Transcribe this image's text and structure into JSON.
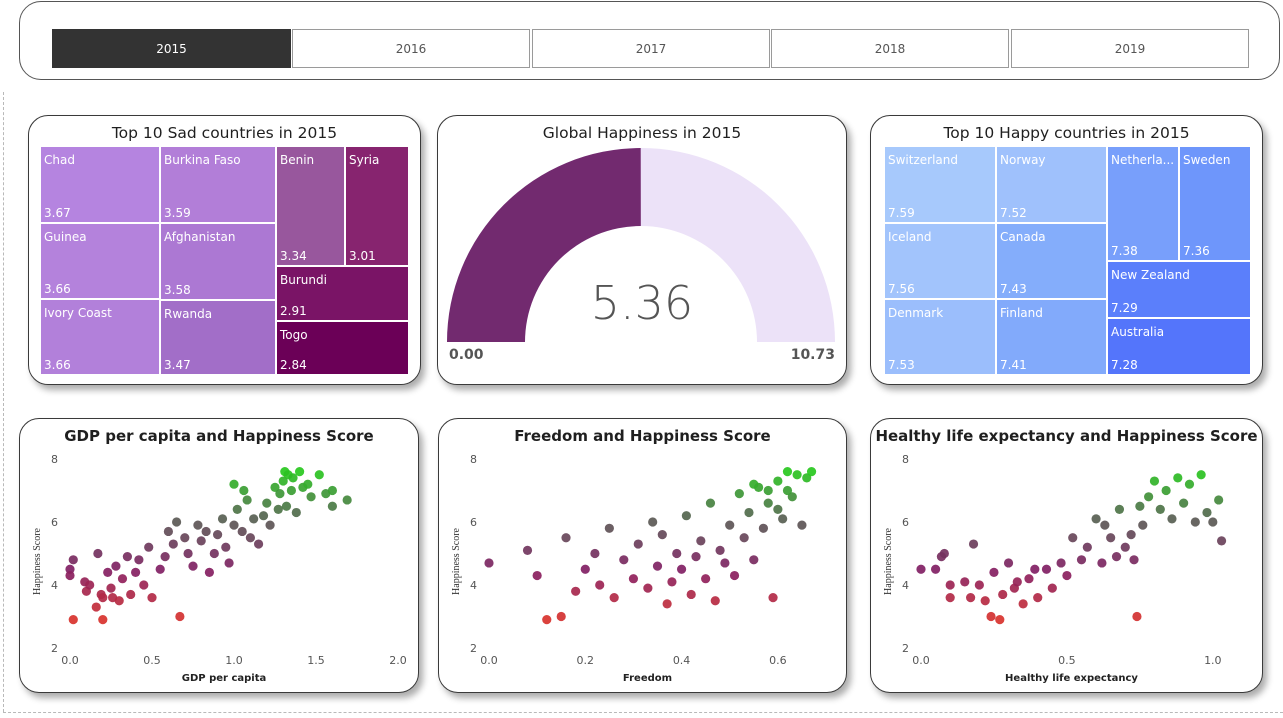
{
  "slicer": {
    "years": [
      "2015",
      "2016",
      "2017",
      "2018",
      "2019"
    ],
    "selected": "2015"
  },
  "sad": {
    "title": "Top 10 Sad countries in 2015",
    "tiles": [
      {
        "name": "Chad",
        "value": "3.67",
        "color": "#b584e0"
      },
      {
        "name": "Burkina Faso",
        "value": "3.59",
        "color": "#b27ed8"
      },
      {
        "name": "Guinea",
        "value": "3.66",
        "color": "#b482dc"
      },
      {
        "name": "Afghanistan",
        "value": "3.58",
        "color": "#ac78d3"
      },
      {
        "name": "Ivory Coast",
        "value": "3.66",
        "color": "#b280da"
      },
      {
        "name": "Rwanda",
        "value": "3.47",
        "color": "#a26ec8"
      },
      {
        "name": "Benin",
        "value": "3.34",
        "color": "#98579d"
      },
      {
        "name": "Syria",
        "value": "3.01",
        "color": "#87246f"
      },
      {
        "name": "Burundi",
        "value": "2.91",
        "color": "#7a1466"
      },
      {
        "name": "Togo",
        "value": "2.84",
        "color": "#6b0057"
      }
    ]
  },
  "global": {
    "title": "Global Happiness in 2015",
    "value": 5.36,
    "value_label": "5.36",
    "min_label": "0.00",
    "max_label": "10.73",
    "min": 0,
    "max": 10.73,
    "fill_color": "#722a6f",
    "track_color": "#ece2f8"
  },
  "happy": {
    "title": "Top 10 Happy countries in 2015",
    "tiles": [
      {
        "name": "Switzerland",
        "value": "7.59",
        "color": "#a7c9fc"
      },
      {
        "name": "Norway",
        "value": "7.52",
        "color": "#9fc1fc"
      },
      {
        "name": "Netherla...",
        "value": "7.38",
        "color": "#789ffb"
      },
      {
        "name": "Sweden",
        "value": "7.36",
        "color": "#6e96fb"
      },
      {
        "name": "Iceland",
        "value": "7.56",
        "color": "#a2c4fc"
      },
      {
        "name": "Canada",
        "value": "7.43",
        "color": "#84adfb"
      },
      {
        "name": "New Zealand",
        "value": "7.29",
        "color": "#5b7ffb"
      },
      {
        "name": "Denmark",
        "value": "7.53",
        "color": "#9bbefc"
      },
      {
        "name": "Finland",
        "value": "7.41",
        "color": "#82aafb"
      },
      {
        "name": "Australia",
        "value": "7.28",
        "color": "#5475fb"
      }
    ]
  },
  "chart_data": [
    {
      "type": "scatter",
      "title": "GDP per capita and Happiness Score",
      "xlabel": "GDP per capita",
      "ylabel": "Happiness Score",
      "xlim": [
        0,
        2
      ],
      "ylim": [
        2,
        8
      ],
      "xticks": [
        "0.0",
        "0.5",
        "1.0",
        "1.5",
        "2.0"
      ],
      "yticks": [
        "2",
        "4",
        "6",
        "8"
      ],
      "points": [
        [
          0.02,
          2.9
        ],
        [
          0.0,
          4.5
        ],
        [
          0.0,
          4.3
        ],
        [
          0.02,
          4.8
        ],
        [
          0.09,
          4.1
        ],
        [
          0.1,
          3.8
        ],
        [
          0.12,
          4.0
        ],
        [
          0.16,
          3.3
        ],
        [
          0.17,
          5.0
        ],
        [
          0.19,
          3.7
        ],
        [
          0.2,
          3.6
        ],
        [
          0.2,
          2.9
        ],
        [
          0.23,
          4.4
        ],
        [
          0.25,
          3.9
        ],
        [
          0.26,
          3.6
        ],
        [
          0.28,
          4.6
        ],
        [
          0.3,
          3.5
        ],
        [
          0.32,
          4.2
        ],
        [
          0.35,
          4.9
        ],
        [
          0.37,
          3.7
        ],
        [
          0.4,
          4.4
        ],
        [
          0.42,
          4.8
        ],
        [
          0.45,
          4.0
        ],
        [
          0.48,
          5.2
        ],
        [
          0.5,
          3.6
        ],
        [
          0.55,
          4.5
        ],
        [
          0.58,
          4.9
        ],
        [
          0.6,
          5.7
        ],
        [
          0.63,
          5.3
        ],
        [
          0.65,
          6.0
        ],
        [
          0.67,
          3.0
        ],
        [
          0.7,
          5.5
        ],
        [
          0.72,
          5.0
        ],
        [
          0.75,
          4.6
        ],
        [
          0.78,
          5.9
        ],
        [
          0.8,
          5.4
        ],
        [
          0.83,
          5.7
        ],
        [
          0.85,
          4.4
        ],
        [
          0.88,
          5.0
        ],
        [
          0.9,
          5.6
        ],
        [
          0.93,
          6.1
        ],
        [
          0.95,
          5.2
        ],
        [
          0.97,
          4.7
        ],
        [
          1.0,
          5.9
        ],
        [
          1.0,
          7.2
        ],
        [
          1.02,
          6.4
        ],
        [
          1.05,
          5.7
        ],
        [
          1.06,
          7.0
        ],
        [
          1.08,
          6.7
        ],
        [
          1.1,
          5.5
        ],
        [
          1.12,
          6.1
        ],
        [
          1.15,
          5.3
        ],
        [
          1.18,
          6.2
        ],
        [
          1.2,
          6.6
        ],
        [
          1.22,
          5.9
        ],
        [
          1.25,
          7.1
        ],
        [
          1.27,
          6.4
        ],
        [
          1.28,
          6.9
        ],
        [
          1.3,
          7.3
        ],
        [
          1.31,
          7.6
        ],
        [
          1.32,
          6.5
        ],
        [
          1.33,
          7.5
        ],
        [
          1.35,
          7.0
        ],
        [
          1.36,
          7.4
        ],
        [
          1.38,
          6.3
        ],
        [
          1.4,
          7.6
        ],
        [
          1.42,
          7.1
        ],
        [
          1.45,
          7.2
        ],
        [
          1.47,
          6.8
        ],
        [
          1.52,
          7.5
        ],
        [
          1.56,
          6.9
        ],
        [
          1.6,
          7.0
        ],
        [
          1.6,
          6.5
        ],
        [
          1.69,
          6.7
        ]
      ]
    },
    {
      "type": "scatter",
      "title": "Freedom and Happiness Score",
      "xlabel": "Freedom",
      "ylabel": "Happiness Score",
      "xlim": [
        0,
        0.7
      ],
      "ylim": [
        2,
        8
      ],
      "xticks": [
        "0.0",
        "0.2",
        "0.4",
        "0.6"
      ],
      "yticks": [
        "2",
        "4",
        "6",
        "8"
      ],
      "points": [
        [
          0.0,
          4.7
        ],
        [
          0.08,
          5.1
        ],
        [
          0.1,
          4.3
        ],
        [
          0.12,
          2.9
        ],
        [
          0.15,
          3.0
        ],
        [
          0.16,
          5.5
        ],
        [
          0.18,
          3.8
        ],
        [
          0.2,
          4.5
        ],
        [
          0.22,
          5.0
        ],
        [
          0.23,
          4.0
        ],
        [
          0.25,
          5.8
        ],
        [
          0.26,
          3.6
        ],
        [
          0.28,
          4.8
        ],
        [
          0.3,
          4.2
        ],
        [
          0.31,
          5.3
        ],
        [
          0.33,
          3.9
        ],
        [
          0.34,
          6.0
        ],
        [
          0.35,
          4.6
        ],
        [
          0.36,
          5.6
        ],
        [
          0.37,
          3.4
        ],
        [
          0.38,
          4.1
        ],
        [
          0.39,
          5.0
        ],
        [
          0.4,
          4.5
        ],
        [
          0.41,
          6.2
        ],
        [
          0.42,
          3.7
        ],
        [
          0.43,
          4.9
        ],
        [
          0.44,
          5.4
        ],
        [
          0.45,
          4.2
        ],
        [
          0.46,
          6.6
        ],
        [
          0.47,
          3.5
        ],
        [
          0.48,
          5.1
        ],
        [
          0.49,
          4.7
        ],
        [
          0.5,
          5.9
        ],
        [
          0.51,
          4.3
        ],
        [
          0.52,
          6.9
        ],
        [
          0.53,
          5.5
        ],
        [
          0.54,
          6.3
        ],
        [
          0.55,
          4.8
        ],
        [
          0.56,
          7.1
        ],
        [
          0.57,
          5.8
        ],
        [
          0.58,
          6.6
        ],
        [
          0.59,
          3.6
        ],
        [
          0.6,
          7.3
        ],
        [
          0.61,
          6.1
        ],
        [
          0.62,
          7.6
        ],
        [
          0.63,
          6.8
        ],
        [
          0.64,
          7.5
        ],
        [
          0.65,
          5.9
        ],
        [
          0.66,
          7.4
        ],
        [
          0.67,
          7.6
        ],
        [
          0.58,
          7.0
        ],
        [
          0.6,
          6.4
        ],
        [
          0.55,
          7.2
        ],
        [
          0.62,
          7.0
        ]
      ]
    },
    {
      "type": "scatter",
      "title": "Healthy life expectancy and Happiness Score",
      "xlabel": "Healthy life expectancy",
      "ylabel": "Happiness Score",
      "xlim": [
        0,
        1.1
      ],
      "ylim": [
        2,
        8
      ],
      "xticks": [
        "0.0",
        "0.5",
        "1.0"
      ],
      "yticks": [
        "2",
        "4",
        "6",
        "8"
      ],
      "points": [
        [
          0.0,
          4.5
        ],
        [
          0.05,
          4.5
        ],
        [
          0.07,
          4.9
        ],
        [
          0.08,
          5.0
        ],
        [
          0.1,
          4.0
        ],
        [
          0.1,
          3.6
        ],
        [
          0.15,
          4.1
        ],
        [
          0.17,
          3.6
        ],
        [
          0.18,
          5.3
        ],
        [
          0.2,
          4.0
        ],
        [
          0.22,
          3.5
        ],
        [
          0.24,
          3.0
        ],
        [
          0.25,
          4.4
        ],
        [
          0.27,
          2.9
        ],
        [
          0.28,
          3.7
        ],
        [
          0.3,
          4.7
        ],
        [
          0.32,
          3.9
        ],
        [
          0.33,
          4.1
        ],
        [
          0.35,
          3.4
        ],
        [
          0.37,
          4.2
        ],
        [
          0.39,
          4.5
        ],
        [
          0.4,
          3.6
        ],
        [
          0.43,
          4.5
        ],
        [
          0.45,
          3.9
        ],
        [
          0.48,
          4.7
        ],
        [
          0.5,
          4.3
        ],
        [
          0.52,
          5.5
        ],
        [
          0.55,
          4.8
        ],
        [
          0.57,
          5.2
        ],
        [
          0.6,
          6.1
        ],
        [
          0.62,
          4.7
        ],
        [
          0.63,
          5.9
        ],
        [
          0.65,
          5.5
        ],
        [
          0.67,
          4.9
        ],
        [
          0.68,
          6.4
        ],
        [
          0.7,
          5.2
        ],
        [
          0.72,
          5.6
        ],
        [
          0.73,
          4.8
        ],
        [
          0.74,
          3.0
        ],
        [
          0.75,
          6.5
        ],
        [
          0.76,
          5.9
        ],
        [
          0.78,
          6.8
        ],
        [
          0.8,
          7.3
        ],
        [
          0.82,
          6.4
        ],
        [
          0.84,
          7.0
        ],
        [
          0.86,
          6.1
        ],
        [
          0.88,
          7.4
        ],
        [
          0.9,
          6.6
        ],
        [
          0.92,
          7.2
        ],
        [
          0.94,
          6.0
        ],
        [
          0.96,
          7.5
        ],
        [
          0.98,
          6.3
        ],
        [
          1.0,
          6.0
        ],
        [
          1.02,
          6.7
        ],
        [
          1.03,
          5.4
        ]
      ]
    }
  ]
}
